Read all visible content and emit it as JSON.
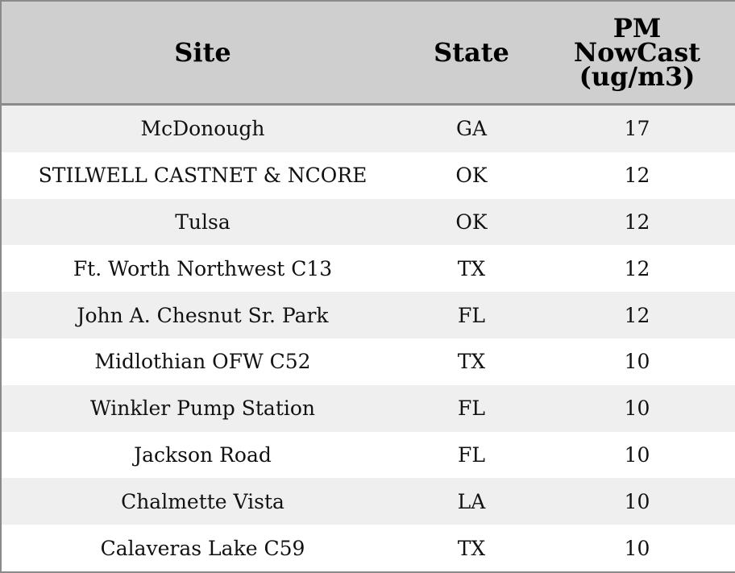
{
  "table": {
    "header": [
      "Site",
      "State",
      "PM NowCast (ug/m3)"
    ],
    "rows": [
      [
        "McDonough",
        "GA",
        17
      ],
      [
        "STILWELL CASTNET & NCORE",
        "OK",
        12
      ],
      [
        "Tulsa",
        "OK",
        12
      ],
      [
        "Ft. Worth Northwest C13",
        "TX",
        12
      ],
      [
        "John A. Chesnut Sr. Park",
        "FL",
        12
      ],
      [
        "Midlothian OFW C52",
        "TX",
        10
      ],
      [
        "Winkler Pump Station",
        "FL",
        10
      ],
      [
        "Jackson Road",
        "FL",
        10
      ],
      [
        "Chalmette Vista",
        "LA",
        10
      ],
      [
        "Calaveras Lake C59",
        "TX",
        10
      ]
    ]
  }
}
